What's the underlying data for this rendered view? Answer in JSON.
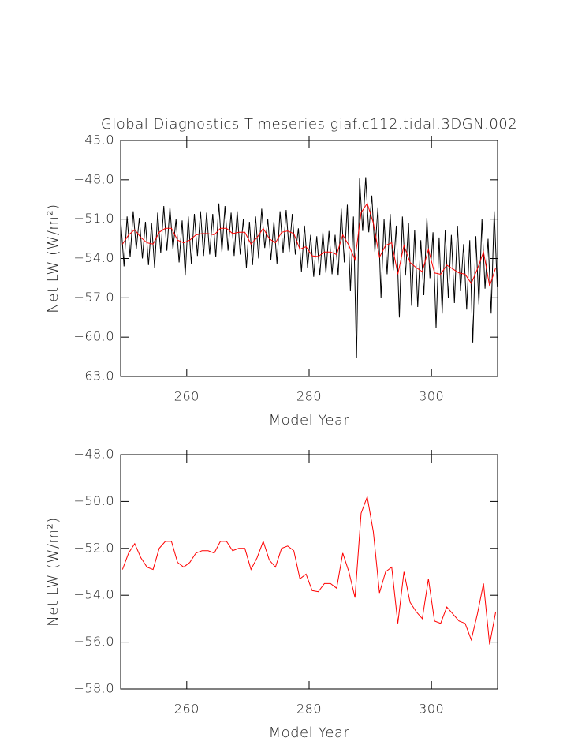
{
  "chart_data": [
    {
      "type": "line",
      "title": "Global Diagnostics Timeseries giaf.c112.tidal.3DGN.002",
      "xlabel": "Model Year",
      "ylabel": "Net LW (W/m²)",
      "xlim": [
        249.2,
        310.8
      ],
      "ylim": [
        -45,
        -63
      ],
      "xticks": [
        260,
        280,
        300
      ],
      "yticks": [
        {
          "value": -45,
          "label": "−45.0"
        },
        {
          "value": -48,
          "label": "−48.0"
        },
        {
          "value": -51,
          "label": "−51.0"
        },
        {
          "value": -54,
          "label": "−54.0"
        },
        {
          "value": -57,
          "label": "−57.0"
        },
        {
          "value": -60,
          "label": "−60.0"
        },
        {
          "value": -63,
          "label": "−63.0"
        }
      ],
      "series": [
        {
          "color": "#000000",
          "x": [
            249.25,
            249.75,
            250.25,
            250.75,
            251.25,
            251.75,
            252.25,
            252.75,
            253.25,
            253.75,
            254.25,
            254.75,
            255.25,
            255.75,
            256.25,
            256.75,
            257.25,
            257.75,
            258.25,
            258.75,
            259.25,
            259.75,
            260.25,
            260.75,
            261.25,
            261.75,
            262.25,
            262.75,
            263.25,
            263.75,
            264.25,
            264.75,
            265.25,
            265.75,
            266.25,
            266.75,
            267.25,
            267.75,
            268.25,
            268.75,
            269.25,
            269.75,
            270.25,
            270.75,
            271.25,
            271.75,
            272.25,
            272.75,
            273.25,
            273.75,
            274.25,
            274.75,
            275.25,
            275.75,
            276.25,
            276.75,
            277.25,
            277.75,
            278.25,
            278.75,
            279.25,
            279.75,
            280.25,
            280.75,
            281.25,
            281.75,
            282.25,
            282.75,
            283.25,
            283.75,
            284.25,
            284.75,
            285.25,
            285.75,
            286.25,
            286.75,
            287.25,
            287.75,
            288.25,
            288.75,
            289.25,
            289.75,
            290.25,
            290.75,
            291.25,
            291.75,
            292.25,
            292.75,
            293.25,
            293.75,
            294.25,
            294.75,
            295.25,
            295.75,
            296.25,
            296.75,
            297.25,
            297.75,
            298.25,
            298.75,
            299.25,
            299.75,
            300.25,
            300.75,
            301.25,
            301.75,
            302.25,
            302.75,
            303.25,
            303.75,
            304.25,
            304.75,
            305.25,
            305.75,
            306.25,
            306.75,
            307.25,
            307.75,
            308.25,
            308.75,
            309.25,
            309.75,
            310.25,
            310.75
          ],
          "values": [
            -51.3,
            -54.6,
            -50.8,
            -53.9,
            -50.4,
            -53.3,
            -50.9,
            -54.0,
            -51.2,
            -54.5,
            -51.3,
            -54.7,
            -50.5,
            -53.6,
            -50.0,
            -53.4,
            -50.1,
            -53.3,
            -51.0,
            -54.3,
            -51.1,
            -55.3,
            -50.8,
            -54.4,
            -50.6,
            -53.8,
            -50.4,
            -53.8,
            -50.5,
            -53.7,
            -50.6,
            -53.9,
            -49.8,
            -53.5,
            -50.0,
            -53.4,
            -50.5,
            -53.8,
            -50.4,
            -53.7,
            -51.0,
            -54.7,
            -51.2,
            -54.5,
            -50.8,
            -54.0,
            -50.2,
            -53.2,
            -51.0,
            -54.1,
            -51.2,
            -54.4,
            -50.4,
            -53.6,
            -50.3,
            -53.5,
            -50.6,
            -53.7,
            -51.7,
            -55.0,
            -51.5,
            -54.7,
            -52.2,
            -55.4,
            -52.3,
            -55.3,
            -52.0,
            -55.1,
            -51.9,
            -55.2,
            -52.2,
            -55.3,
            -50.2,
            -54.3,
            -49.9,
            -56.5,
            -50.8,
            -61.6,
            -47.9,
            -51.9,
            -47.8,
            -52.0,
            -49.2,
            -53.5,
            -50.1,
            -57.0,
            -51.0,
            -55.2,
            -50.6,
            -54.9,
            -51.5,
            -58.5,
            -50.8,
            -55.3,
            -51.3,
            -57.6,
            -51.8,
            -57.7,
            -52.6,
            -56.8,
            -50.9,
            -55.5,
            -52.0,
            -59.3,
            -52.4,
            -58.2,
            -51.8,
            -57.0,
            -52.2,
            -57.4,
            -51.5,
            -56.5,
            -52.9,
            -57.9,
            -52.6,
            -60.4,
            -52.3,
            -57.5,
            -51.0,
            -56.3,
            -52.5,
            -58.2,
            -50.4,
            -56.2
          ]
        },
        {
          "color": "#ff0000",
          "x": [
            249.5,
            250.5,
            251.5,
            252.5,
            253.5,
            254.5,
            255.5,
            256.5,
            257.5,
            258.5,
            259.5,
            260.5,
            261.5,
            262.5,
            263.5,
            264.5,
            265.5,
            266.5,
            267.5,
            268.5,
            269.5,
            270.5,
            271.5,
            272.5,
            273.5,
            274.5,
            275.5,
            276.5,
            277.5,
            278.5,
            279.5,
            280.5,
            281.5,
            282.5,
            283.5,
            284.5,
            285.5,
            286.5,
            287.5,
            288.5,
            289.5,
            290.5,
            291.5,
            292.5,
            293.5,
            294.5,
            295.5,
            296.5,
            297.5,
            298.5,
            299.5,
            300.5,
            301.5,
            302.5,
            303.5,
            304.5,
            305.5,
            306.5,
            307.5,
            308.5,
            309.5,
            310.5
          ],
          "values": [
            -52.9,
            -52.2,
            -51.8,
            -52.4,
            -52.8,
            -52.9,
            -52.0,
            -51.7,
            -51.7,
            -52.6,
            -52.8,
            -52.6,
            -52.2,
            -52.1,
            -52.1,
            -52.2,
            -51.7,
            -51.7,
            -52.1,
            -52.0,
            -52.0,
            -52.9,
            -52.4,
            -51.7,
            -52.5,
            -52.8,
            -52.0,
            -51.9,
            -52.1,
            -53.3,
            -53.1,
            -53.8,
            -53.85,
            -53.5,
            -53.5,
            -53.7,
            -52.2,
            -53.0,
            -54.1,
            -50.5,
            -49.8,
            -51.3,
            -53.9,
            -53.0,
            -52.8,
            -55.2,
            -53.0,
            -54.3,
            -54.7,
            -55.0,
            -53.3,
            -55.1,
            -55.2,
            -54.5,
            -54.8,
            -55.1,
            -55.2,
            -55.9,
            -54.8,
            -53.5,
            -56.1,
            -54.7
          ]
        }
      ]
    },
    {
      "type": "line",
      "xlabel": "Model Year",
      "ylabel": "Net LW (W/m²)",
      "xlim": [
        249.2,
        310.8
      ],
      "ylim": [
        -48,
        -58
      ],
      "xticks": [
        260,
        280,
        300
      ],
      "yticks": [
        {
          "value": -48,
          "label": "−48.0"
        },
        {
          "value": -50,
          "label": "−50.0"
        },
        {
          "value": -52,
          "label": "−52.0"
        },
        {
          "value": -54,
          "label": "−54.0"
        },
        {
          "value": -56,
          "label": "−56.0"
        },
        {
          "value": -58,
          "label": "−58.0"
        }
      ],
      "series": [
        {
          "color": "#ff0000",
          "x": [
            249.5,
            250.5,
            251.5,
            252.5,
            253.5,
            254.5,
            255.5,
            256.5,
            257.5,
            258.5,
            259.5,
            260.5,
            261.5,
            262.5,
            263.5,
            264.5,
            265.5,
            266.5,
            267.5,
            268.5,
            269.5,
            270.5,
            271.5,
            272.5,
            273.5,
            274.5,
            275.5,
            276.5,
            277.5,
            278.5,
            279.5,
            280.5,
            281.5,
            282.5,
            283.5,
            284.5,
            285.5,
            286.5,
            287.5,
            288.5,
            289.5,
            290.5,
            291.5,
            292.5,
            293.5,
            294.5,
            295.5,
            296.5,
            297.5,
            298.5,
            299.5,
            300.5,
            301.5,
            302.5,
            303.5,
            304.5,
            305.5,
            306.5,
            307.5,
            308.5,
            309.5,
            310.5
          ],
          "values": [
            -52.9,
            -52.2,
            -51.8,
            -52.4,
            -52.8,
            -52.9,
            -52.0,
            -51.7,
            -51.7,
            -52.6,
            -52.8,
            -52.6,
            -52.2,
            -52.1,
            -52.1,
            -52.2,
            -51.7,
            -51.7,
            -52.1,
            -52.0,
            -52.0,
            -52.9,
            -52.4,
            -51.7,
            -52.5,
            -52.8,
            -52.0,
            -51.9,
            -52.1,
            -53.3,
            -53.1,
            -53.8,
            -53.85,
            -53.5,
            -53.5,
            -53.7,
            -52.2,
            -53.0,
            -54.1,
            -50.5,
            -49.8,
            -51.3,
            -53.9,
            -53.0,
            -52.8,
            -55.2,
            -53.0,
            -54.3,
            -54.7,
            -55.0,
            -53.3,
            -55.1,
            -55.2,
            -54.5,
            -54.8,
            -55.1,
            -55.2,
            -55.9,
            -54.8,
            -53.5,
            -56.1,
            -54.7
          ]
        }
      ]
    }
  ]
}
